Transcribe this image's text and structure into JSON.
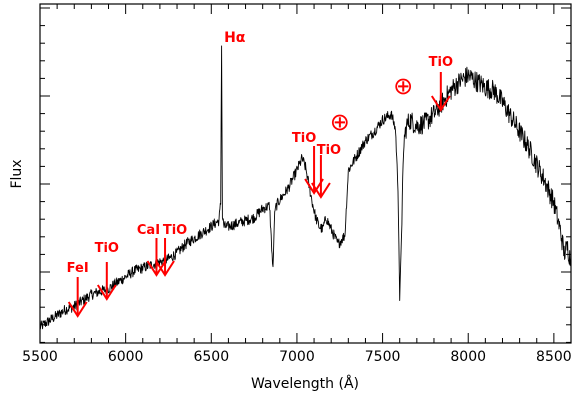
{
  "chart_data": {
    "type": "line",
    "title": "",
    "xlabel": "Wavelength (Å)",
    "ylabel": "Flux",
    "xlim": [
      5500,
      8600
    ],
    "ylim": [
      0,
      1
    ],
    "x_ticks": [
      5500,
      6000,
      6500,
      7000,
      7500,
      8000,
      8500
    ],
    "y_tick_labels_shown": false,
    "grid": false,
    "legend": "none",
    "colors": {
      "spectrum": "#000000",
      "annotation": "#ff0000",
      "axes": "#000000"
    },
    "series": [
      {
        "x": [
          5500,
          5550,
          5600,
          5650,
          5700,
          5750,
          5800,
          5850,
          5900,
          5950,
          6000,
          6050,
          6100,
          6150,
          6200,
          6250,
          6300,
          6350,
          6400,
          6450,
          6500,
          6520,
          6545,
          6555,
          6560,
          6565,
          6575,
          6600,
          6650,
          6700,
          6750,
          6800,
          6840,
          6860,
          6870,
          6880,
          6900,
          6950,
          7000,
          7030,
          7050,
          7070,
          7090,
          7110,
          7130,
          7150,
          7170,
          7200,
          7240,
          7280,
          7300,
          7350,
          7400,
          7450,
          7500,
          7550,
          7575,
          7590,
          7600,
          7610,
          7625,
          7640,
          7660,
          7700,
          7750,
          7800,
          7850,
          7900,
          7950,
          8000,
          8050,
          8100,
          8150,
          8200,
          8250,
          8300,
          8350,
          8400,
          8450,
          8500,
          8540,
          8560,
          8580,
          8600
        ],
        "y": [
          0.03,
          0.05,
          0.07,
          0.09,
          0.1,
          0.12,
          0.14,
          0.15,
          0.16,
          0.18,
          0.2,
          0.22,
          0.23,
          0.24,
          0.25,
          0.26,
          0.28,
          0.31,
          0.33,
          0.35,
          0.37,
          0.38,
          0.39,
          0.45,
          0.98,
          0.4,
          0.37,
          0.37,
          0.38,
          0.39,
          0.4,
          0.43,
          0.44,
          0.22,
          0.42,
          0.44,
          0.46,
          0.5,
          0.56,
          0.6,
          0.57,
          0.51,
          0.45,
          0.4,
          0.37,
          0.36,
          0.4,
          0.36,
          0.31,
          0.34,
          0.56,
          0.61,
          0.66,
          0.69,
          0.73,
          0.75,
          0.7,
          0.5,
          0.12,
          0.35,
          0.66,
          0.71,
          0.73,
          0.71,
          0.72,
          0.75,
          0.79,
          0.83,
          0.86,
          0.88,
          0.86,
          0.84,
          0.83,
          0.79,
          0.74,
          0.69,
          0.64,
          0.58,
          0.52,
          0.45,
          0.35,
          0.28,
          0.3,
          0.25
        ]
      }
    ],
    "annotations": [
      {
        "label": "FeI",
        "wavelength": 5720,
        "type": "arrow"
      },
      {
        "label": "TiO",
        "wavelength": 5890,
        "type": "arrow"
      },
      {
        "label": "CaI",
        "wavelength": 6180,
        "type": "arrow"
      },
      {
        "label": "TiO",
        "wavelength": 6230,
        "type": "arrow"
      },
      {
        "label": "TiO",
        "wavelength": 7100,
        "type": "arrow"
      },
      {
        "label": "TiO",
        "wavelength": 7140,
        "type": "arrow"
      },
      {
        "label": "TiO",
        "wavelength": 7840,
        "type": "arrow"
      },
      {
        "label": "Hα",
        "wavelength": 6563,
        "type": "line-label"
      },
      {
        "label": "⊕",
        "wavelength": 7250,
        "type": "telluric"
      },
      {
        "label": "⊕",
        "wavelength": 7620,
        "type": "telluric"
      }
    ]
  }
}
